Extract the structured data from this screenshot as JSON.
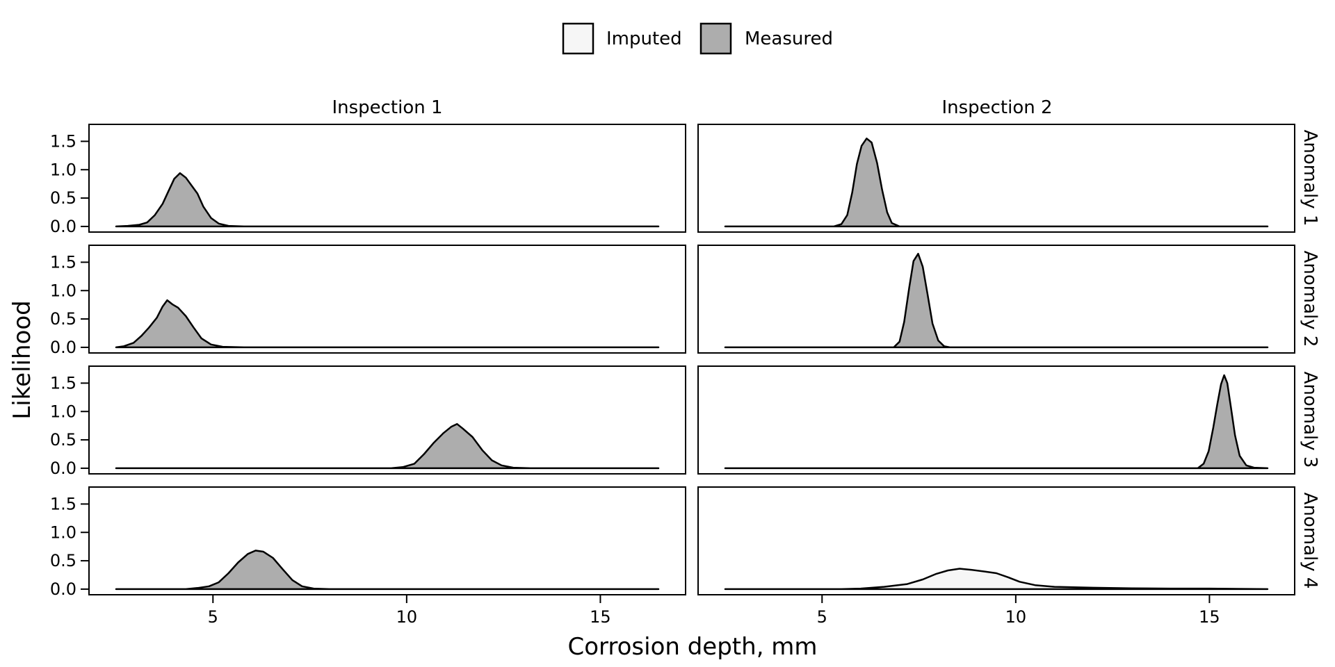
{
  "colors": {
    "imputed": "#f6f6f6",
    "measured": "#adadad",
    "stroke": "#000000"
  },
  "legend": {
    "items": [
      {
        "label": "Imputed",
        "fill_key": "imputed"
      },
      {
        "label": "Measured",
        "fill_key": "measured"
      }
    ],
    "position": "top-center"
  },
  "chart_data": {
    "type": "area",
    "subtype": "faceted density",
    "xlabel": "Corrosion depth, mm",
    "ylabel": "Likelihood",
    "xlim": [
      1.8,
      17.2
    ],
    "ylim": [
      -0.05,
      1.75
    ],
    "x_ticks": [
      "5",
      "10",
      "15"
    ],
    "x_tick_values": [
      5,
      10,
      15
    ],
    "y_ticks": [
      "0.0",
      "0.5",
      "1.0",
      "1.5"
    ],
    "y_tick_values": [
      0,
      0.5,
      1.0,
      1.5
    ],
    "x_range_drawn": [
      2.5,
      16.5
    ],
    "columns": [
      "Inspection 1",
      "Inspection 2"
    ],
    "rows": [
      "Anomaly 1",
      "Anomaly 2",
      "Anomaly 3",
      "Anomaly 4"
    ],
    "panels": [
      {
        "row": "Anomaly 1",
        "column": "Inspection 1",
        "status": "Measured",
        "points": [
          [
            2.5,
            0
          ],
          [
            2.8,
            0.01
          ],
          [
            3.1,
            0.03
          ],
          [
            3.3,
            0.07
          ],
          [
            3.5,
            0.2
          ],
          [
            3.7,
            0.4
          ],
          [
            3.85,
            0.62
          ],
          [
            4.0,
            0.84
          ],
          [
            4.15,
            0.94
          ],
          [
            4.3,
            0.86
          ],
          [
            4.45,
            0.72
          ],
          [
            4.6,
            0.58
          ],
          [
            4.75,
            0.35
          ],
          [
            4.95,
            0.15
          ],
          [
            5.15,
            0.05
          ],
          [
            5.4,
            0.01
          ],
          [
            5.8,
            0
          ],
          [
            16.5,
            0
          ]
        ]
      },
      {
        "row": "Anomaly 1",
        "column": "Inspection 2",
        "status": "Measured",
        "points": [
          [
            2.5,
            0
          ],
          [
            5.3,
            0
          ],
          [
            5.5,
            0.04
          ],
          [
            5.65,
            0.2
          ],
          [
            5.78,
            0.6
          ],
          [
            5.9,
            1.1
          ],
          [
            6.02,
            1.42
          ],
          [
            6.15,
            1.55
          ],
          [
            6.28,
            1.48
          ],
          [
            6.42,
            1.12
          ],
          [
            6.55,
            0.65
          ],
          [
            6.68,
            0.25
          ],
          [
            6.8,
            0.06
          ],
          [
            7.0,
            0
          ],
          [
            16.5,
            0
          ]
        ]
      },
      {
        "row": "Anomaly 2",
        "column": "Inspection 1",
        "status": "Measured",
        "points": [
          [
            2.5,
            0
          ],
          [
            2.7,
            0.02
          ],
          [
            2.95,
            0.08
          ],
          [
            3.15,
            0.2
          ],
          [
            3.35,
            0.35
          ],
          [
            3.55,
            0.52
          ],
          [
            3.7,
            0.72
          ],
          [
            3.82,
            0.83
          ],
          [
            3.95,
            0.76
          ],
          [
            4.1,
            0.7
          ],
          [
            4.3,
            0.55
          ],
          [
            4.5,
            0.35
          ],
          [
            4.7,
            0.16
          ],
          [
            4.95,
            0.05
          ],
          [
            5.25,
            0.01
          ],
          [
            5.8,
            0
          ],
          [
            16.5,
            0
          ]
        ]
      },
      {
        "row": "Anomaly 2",
        "column": "Inspection 2",
        "status": "Measured",
        "points": [
          [
            2.5,
            0
          ],
          [
            6.85,
            0
          ],
          [
            7.0,
            0.1
          ],
          [
            7.12,
            0.45
          ],
          [
            7.25,
            1.05
          ],
          [
            7.36,
            1.52
          ],
          [
            7.48,
            1.65
          ],
          [
            7.6,
            1.42
          ],
          [
            7.72,
            0.95
          ],
          [
            7.85,
            0.42
          ],
          [
            8.0,
            0.12
          ],
          [
            8.15,
            0.02
          ],
          [
            8.3,
            0
          ],
          [
            16.5,
            0
          ]
        ]
      },
      {
        "row": "Anomaly 3",
        "column": "Inspection 1",
        "status": "Measured",
        "points": [
          [
            2.5,
            0
          ],
          [
            9.6,
            0
          ],
          [
            9.9,
            0.02
          ],
          [
            10.2,
            0.08
          ],
          [
            10.45,
            0.25
          ],
          [
            10.7,
            0.45
          ],
          [
            10.95,
            0.62
          ],
          [
            11.15,
            0.73
          ],
          [
            11.3,
            0.78
          ],
          [
            11.45,
            0.7
          ],
          [
            11.7,
            0.55
          ],
          [
            11.95,
            0.32
          ],
          [
            12.2,
            0.14
          ],
          [
            12.45,
            0.05
          ],
          [
            12.75,
            0.01
          ],
          [
            13.2,
            0
          ],
          [
            16.5,
            0
          ]
        ]
      },
      {
        "row": "Anomaly 3",
        "column": "Inspection 2",
        "status": "Measured",
        "points": [
          [
            2.5,
            0
          ],
          [
            14.7,
            0
          ],
          [
            14.85,
            0.08
          ],
          [
            14.98,
            0.3
          ],
          [
            15.1,
            0.72
          ],
          [
            15.2,
            1.12
          ],
          [
            15.3,
            1.48
          ],
          [
            15.38,
            1.64
          ],
          [
            15.46,
            1.5
          ],
          [
            15.56,
            1.05
          ],
          [
            15.66,
            0.58
          ],
          [
            15.78,
            0.22
          ],
          [
            15.95,
            0.05
          ],
          [
            16.15,
            0.01
          ],
          [
            16.5,
            0
          ]
        ]
      },
      {
        "row": "Anomaly 4",
        "column": "Inspection 1",
        "status": "Measured",
        "points": [
          [
            2.5,
            0
          ],
          [
            4.3,
            0
          ],
          [
            4.6,
            0.02
          ],
          [
            4.9,
            0.05
          ],
          [
            5.15,
            0.12
          ],
          [
            5.4,
            0.28
          ],
          [
            5.65,
            0.47
          ],
          [
            5.9,
            0.62
          ],
          [
            6.1,
            0.68
          ],
          [
            6.3,
            0.66
          ],
          [
            6.55,
            0.55
          ],
          [
            6.8,
            0.35
          ],
          [
            7.05,
            0.16
          ],
          [
            7.3,
            0.05
          ],
          [
            7.6,
            0.01
          ],
          [
            8.0,
            0
          ],
          [
            16.5,
            0
          ]
        ]
      },
      {
        "row": "Anomaly 4",
        "column": "Inspection 2",
        "status": "Imputed",
        "points": [
          [
            2.5,
            0
          ],
          [
            5.5,
            0
          ],
          [
            6.0,
            0.01
          ],
          [
            6.6,
            0.04
          ],
          [
            7.2,
            0.09
          ],
          [
            7.6,
            0.17
          ],
          [
            7.95,
            0.27
          ],
          [
            8.25,
            0.33
          ],
          [
            8.55,
            0.36
          ],
          [
            8.85,
            0.34
          ],
          [
            9.2,
            0.31
          ],
          [
            9.5,
            0.28
          ],
          [
            9.8,
            0.21
          ],
          [
            10.1,
            0.13
          ],
          [
            10.5,
            0.07
          ],
          [
            11.0,
            0.04
          ],
          [
            12.0,
            0.025
          ],
          [
            13.0,
            0.015
          ],
          [
            14.0,
            0.01
          ],
          [
            15.0,
            0.01
          ],
          [
            16.5,
            0
          ]
        ]
      }
    ]
  }
}
